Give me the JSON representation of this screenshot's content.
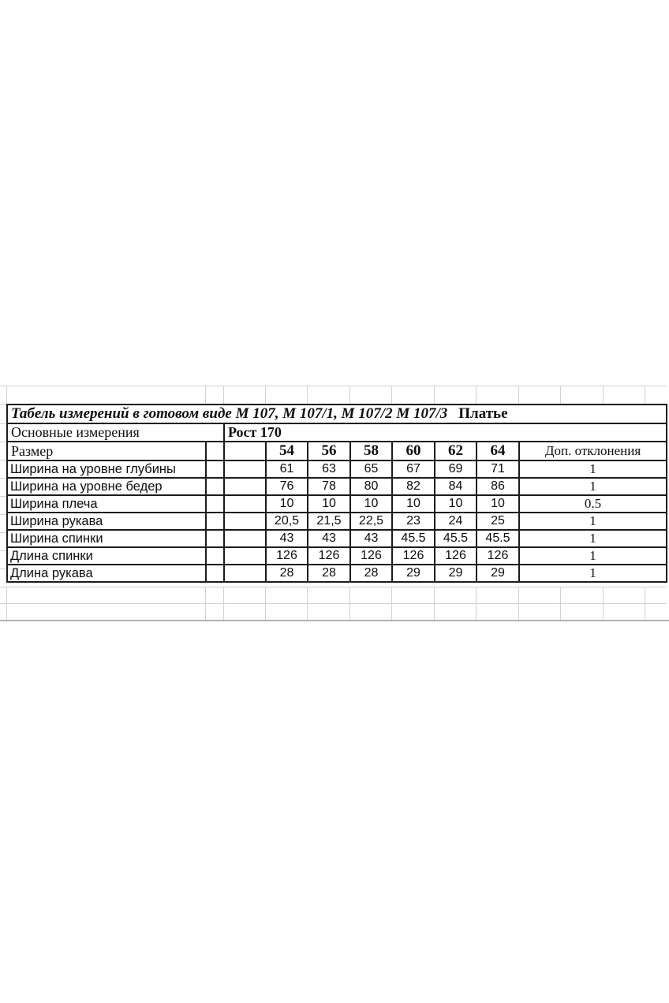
{
  "sheet": {
    "title": {
      "main": "Табель измерений в готовом виде М 107, М 107/1, М 107/2 М 107/3",
      "product": "Платье"
    },
    "header": {
      "basic_label": "Основные измерения",
      "height_label": "Рост 170",
      "size_label": "Размер",
      "sizes": [
        "54",
        "56",
        "58",
        "60",
        "62",
        "64"
      ],
      "deviation_label": "Доп. отклонения"
    },
    "rows": [
      {
        "label": "Ширина на уровне глубины",
        "values": [
          "61",
          "63",
          "65",
          "67",
          "69",
          "71"
        ],
        "deviation": "1"
      },
      {
        "label": "Ширина на уровне бедер",
        "values": [
          "76",
          "78",
          "80",
          "82",
          "84",
          "86"
        ],
        "deviation": "1"
      },
      {
        "label": "Ширина плеча",
        "values": [
          "10",
          "10",
          "10",
          "10",
          "10",
          "10"
        ],
        "deviation": "0.5"
      },
      {
        "label": "Ширина рукава",
        "values": [
          "20,5",
          "21,5",
          "22,5",
          "23",
          "24",
          "25"
        ],
        "deviation": "1"
      },
      {
        "label": "Ширина спинки",
        "values": [
          "43",
          "43",
          "43",
          "45.5",
          "45.5",
          "45.5"
        ],
        "deviation": "1"
      },
      {
        "label": "Длина спинки",
        "values": [
          "126",
          "126",
          "126",
          "126",
          "126",
          "126"
        ],
        "deviation": "1"
      },
      {
        "label": "Длина рукава",
        "values": [
          "28",
          "28",
          "28",
          "29",
          "29",
          "29"
        ],
        "deviation": "1"
      }
    ],
    "colors": {
      "table_border": "#1b1b1b",
      "faint_gridline": "#d2d2d2",
      "background": "#ffffff"
    }
  }
}
